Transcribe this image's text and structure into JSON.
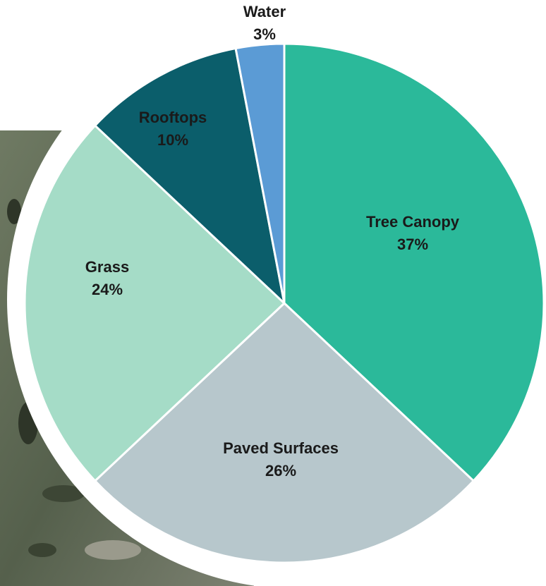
{
  "chart_data": {
    "type": "pie",
    "categories": [
      "Tree Canopy",
      "Paved Surfaces",
      "Grass",
      "Rooftops",
      "Water"
    ],
    "values": [
      37,
      26,
      24,
      10,
      3
    ],
    "value_labels": [
      "37%",
      "26%",
      "24%",
      "10%",
      "3%"
    ],
    "colors": [
      "#2bb99a",
      "#b7c7cc",
      "#a5dcc7",
      "#0b5e6b",
      "#5b9bd5"
    ]
  }
}
